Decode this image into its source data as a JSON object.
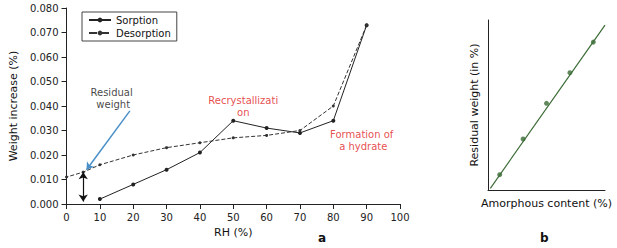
{
  "chart_data": [
    {
      "type": "line",
      "panel_label": "a",
      "x_label": "RH (%)",
      "y_label": "Weight increase (%)",
      "xlim": [
        0,
        100
      ],
      "xticks": [
        0,
        10,
        20,
        30,
        40,
        50,
        60,
        70,
        80,
        90,
        100
      ],
      "ylim": [
        0,
        0.08
      ],
      "yticks": [
        {
          "value": 0,
          "label": "0.000"
        },
        {
          "value": 0.01,
          "label": "0.010"
        },
        {
          "value": 0.02,
          "label": "0.020"
        },
        {
          "value": 0.03,
          "label": "0.030"
        },
        {
          "value": 0.04,
          "label": "0.040"
        },
        {
          "value": 0.05,
          "label": "0.050"
        },
        {
          "value": 0.06,
          "label": "0.060"
        },
        {
          "value": 0.07,
          "label": "0.070"
        },
        {
          "value": 0.08,
          "label": "0.080"
        }
      ],
      "grid": false,
      "legend": "upper left",
      "series": [
        {
          "name": "Sorption",
          "color": "#222222",
          "line_style": "solid",
          "marker": "circle",
          "x": [
            10,
            20,
            30,
            40,
            50,
            60,
            70,
            80,
            90
          ],
          "values": [
            0.002,
            0.008,
            0.014,
            0.021,
            0.034,
            0.031,
            0.029,
            0.034,
            0.073
          ]
        },
        {
          "name": "Desorption",
          "color": "#333333",
          "line_style": "dashed",
          "marker": "circle",
          "x": [
            90,
            80,
            70,
            60,
            50,
            40,
            30,
            20,
            10,
            5,
            0
          ],
          "values": [
            0.073,
            0.04,
            0.03,
            0.028,
            0.027,
            0.025,
            0.023,
            0.02,
            0.016,
            0.013,
            0.011
          ]
        }
      ],
      "annotations": [
        {
          "text": "Residual weight",
          "x": 14,
          "y": 0.043,
          "color": "#111111",
          "arrow": [
            [
              19,
              0.038
            ],
            [
              6,
              0.014
            ]
          ]
        },
        {
          "text": "Recrystallization",
          "x": 53,
          "y": 0.04,
          "color": "#e02020"
        },
        {
          "text": "Formation of a hydrate",
          "x": 89,
          "y": 0.026,
          "color": "#e02020"
        }
      ],
      "residual_weight": {
        "x": 5,
        "from": 0.001,
        "to": 0.013
      }
    },
    {
      "type": "scatter",
      "panel_label": "b",
      "x_label": "Amorphous content (%)",
      "y_label": "Residual weight (in %)",
      "xlim": [
        0,
        10
      ],
      "xticks": [],
      "ylim": [
        0,
        10
      ],
      "yticks": [],
      "tick_labels": false,
      "grid": false,
      "color": "#3a6b35",
      "x": [
        1,
        3,
        5,
        7,
        9
      ],
      "values": [
        0.9,
        3.0,
        5.1,
        6.9,
        8.7
      ],
      "fit": {
        "x": [
          0.2,
          10
        ],
        "values": [
          0.1,
          9.7
        ]
      }
    }
  ]
}
